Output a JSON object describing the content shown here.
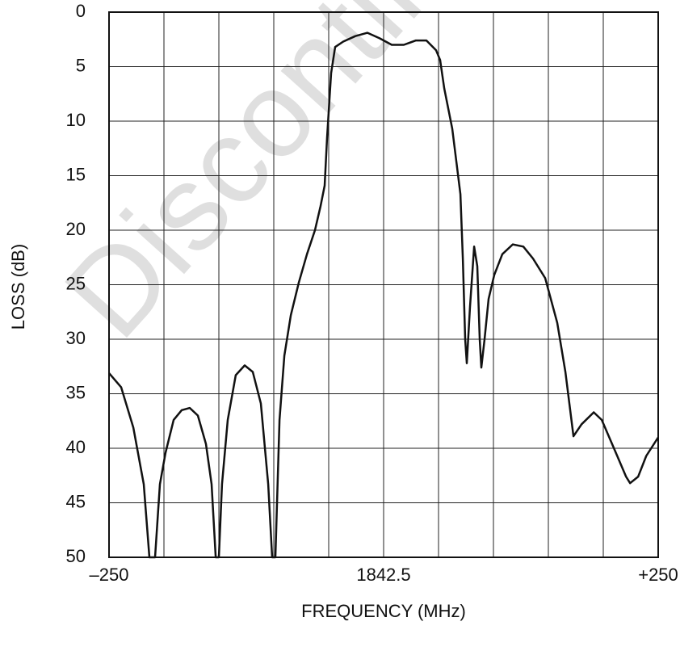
{
  "chart_data": {
    "type": "line",
    "watermark": "Discontinued",
    "xlabel": "FREQUENCY (MHz)",
    "ylabel": "LOSS (dB)",
    "xlim": [
      1592.5,
      2092.5
    ],
    "xticks": [
      {
        "value": 1592.5,
        "label": "–250"
      },
      1842.5,
      {
        "value": 2092.5,
        "label": "+250"
      }
    ],
    "xgrid": [
      1642.5,
      1692.5,
      1742.5,
      1792.5,
      1892.5,
      1942.5,
      1992.5,
      2042.5
    ],
    "ylim": [
      0,
      50
    ],
    "y_inverted": true,
    "yticks": [
      0,
      5,
      10,
      15,
      20,
      25,
      30,
      35,
      40,
      45,
      50
    ],
    "grid": true,
    "series": [
      {
        "color": "#111111",
        "x": [
          1592.5,
          1603.5,
          1614.6,
          1624.1,
          1629.3,
          1634.4,
          1638.8,
          1644,
          1651.3,
          1658.7,
          1666,
          1673.4,
          1680.7,
          1685.9,
          1689.6,
          1692.5,
          1695.4,
          1700.6,
          1707.9,
          1716,
          1723.4,
          1730.7,
          1737.4,
          1741,
          1744,
          1747.7,
          1752.1,
          1758,
          1765.3,
          1772.7,
          1780,
          1785.1,
          1788.8,
          1791,
          1794.7,
          1798.4,
          1805.7,
          1816.8,
          1827.8,
          1838.8,
          1849.9,
          1860.9,
          1871.9,
          1881.5,
          1890.3,
          1894,
          1897.7,
          1905,
          1912.4,
          1914.6,
          1916.8,
          1918.2,
          1921.2,
          1924.9,
          1927.8,
          1930,
          1931.5,
          1934.4,
          1938.1,
          1943.2,
          1950.6,
          1960.1,
          1969.7,
          1978.5,
          1989.6,
          2000.6,
          2008,
          2015.4,
          2022.7,
          2033.8,
          2041.1,
          2052.2,
          2063.2,
          2066.9,
          2074.3,
          2081.6,
          2092.5
        ],
        "values": [
          33.1,
          34.4,
          38.1,
          43.3,
          50,
          50,
          43.3,
          40.4,
          37.4,
          36.5,
          36.3,
          37,
          39.6,
          43.3,
          50,
          50,
          43.3,
          37.4,
          33.3,
          32.4,
          33,
          35.9,
          43.3,
          50,
          50,
          37.4,
          31.5,
          27.8,
          24.8,
          22.2,
          20,
          17.8,
          15.9,
          11.5,
          5.6,
          3.2,
          2.7,
          2.2,
          1.9,
          2.4,
          3,
          3,
          2.6,
          2.6,
          3.5,
          4.4,
          7,
          10.7,
          16.7,
          22.6,
          30,
          32.2,
          27,
          21.5,
          23.3,
          30,
          32.6,
          30,
          26.3,
          24.1,
          22.2,
          21.3,
          21.5,
          22.6,
          24.4,
          28.5,
          33,
          38.9,
          37.8,
          36.7,
          37.4,
          40,
          42.6,
          43.2,
          42.6,
          40.7,
          39
        ]
      }
    ]
  }
}
